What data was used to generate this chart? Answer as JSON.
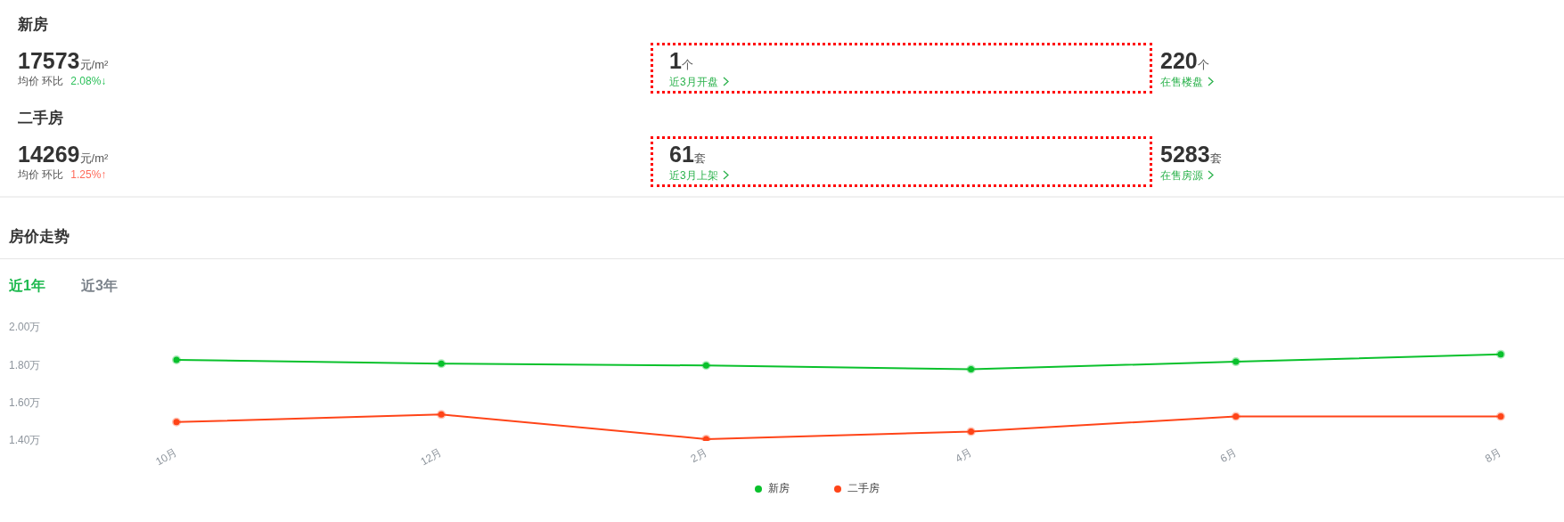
{
  "chart_data": [
    {
      "type": "other",
      "title": "新房",
      "color": "#2cc05a",
      "annotations": [
        "17573",
        "元/m²",
        "均价 环比",
        "2.08%↓",
        "1",
        "个",
        "近3月开盘",
        "220",
        "个",
        "在售楼盘"
      ]
    },
    {
      "type": "other",
      "title": "二手房",
      "color": "#ff6a5a",
      "annotations": [
        "14269",
        "元/m²",
        "均价 环比",
        "1.25%↑",
        "61",
        "套",
        "近3月上架",
        "5283",
        "套",
        "在售房源"
      ]
    },
    {
      "type": "line",
      "title": "房价走势",
      "annotations": [
        "近1年",
        "近3年"
      ],
      "categories": [
        "10月",
        "12月",
        "2月",
        "4月",
        "6月",
        "8月"
      ],
      "series": [
        {
          "name": "新房",
          "color": "#0ac12c",
          "values": [
            1.83,
            1.81,
            1.8,
            1.78,
            1.82,
            1.86
          ]
        },
        {
          "name": "二手房",
          "color": "#ff4418",
          "values": [
            1.5,
            1.54,
            1.41,
            1.45,
            1.53,
            1.53
          ]
        }
      ],
      "ylim": [
        1.4,
        2.0
      ],
      "yticks": [
        {
          "value": 1.4,
          "label": "1.40万"
        },
        {
          "value": 1.6,
          "label": "1.60万"
        },
        {
          "value": 1.8,
          "label": "1.80万"
        },
        {
          "value": 2.0,
          "label": "2.00万"
        }
      ],
      "grid": false,
      "legend": "bottom",
      "marker": "circle"
    }
  ]
}
